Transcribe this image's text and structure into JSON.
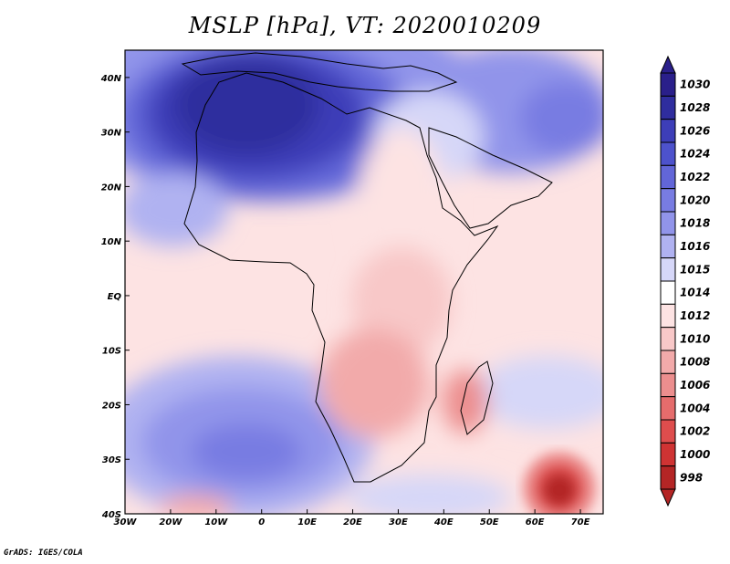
{
  "title": "MSLP [hPa], VT: 2020010209",
  "credit": "GrADS: IGES/COLA",
  "map": {
    "lon_range": [
      -30,
      75
    ],
    "lat_range": [
      -40,
      45
    ],
    "x_ticks": [
      {
        "lon": -30,
        "label": "30W"
      },
      {
        "lon": -20,
        "label": "20W"
      },
      {
        "lon": -10,
        "label": "10W"
      },
      {
        "lon": 0,
        "label": "0"
      },
      {
        "lon": 10,
        "label": "10E"
      },
      {
        "lon": 20,
        "label": "20E"
      },
      {
        "lon": 30,
        "label": "30E"
      },
      {
        "lon": 40,
        "label": "40E"
      },
      {
        "lon": 50,
        "label": "50E"
      },
      {
        "lon": 60,
        "label": "60E"
      },
      {
        "lon": 70,
        "label": "70E"
      }
    ],
    "y_ticks": [
      {
        "lat": -40,
        "label": "40S"
      },
      {
        "lat": -30,
        "label": "30S"
      },
      {
        "lat": -20,
        "label": "20S"
      },
      {
        "lat": -10,
        "label": "10S"
      },
      {
        "lat": 0,
        "label": "EQ"
      },
      {
        "lat": 10,
        "label": "10N"
      },
      {
        "lat": 20,
        "label": "20N"
      },
      {
        "lat": 30,
        "label": "30N"
      },
      {
        "lat": 40,
        "label": "40N"
      }
    ]
  },
  "colorbar": {
    "levels": [
      {
        "label": "1030",
        "color": "#2a1f8a"
      },
      {
        "label": "1028",
        "color": "#2f2d9e"
      },
      {
        "label": "1026",
        "color": "#3d3eb8"
      },
      {
        "label": "1024",
        "color": "#4d52cc"
      },
      {
        "label": "1022",
        "color": "#6266d8"
      },
      {
        "label": "1020",
        "color": "#787ce2"
      },
      {
        "label": "1018",
        "color": "#9194ea"
      },
      {
        "label": "1016",
        "color": "#b0b2f1"
      },
      {
        "label": "1015",
        "color": "#d6d7f8"
      },
      {
        "label": "1014",
        "color": "#ffffff"
      },
      {
        "label": "1012",
        "color": "#fde3e3"
      },
      {
        "label": "1010",
        "color": "#f8c8c8"
      },
      {
        "label": "1008",
        "color": "#f2aaaa"
      },
      {
        "label": "1006",
        "color": "#ec8e8e"
      },
      {
        "label": "1004",
        "color": "#e56c6c"
      },
      {
        "label": "1002",
        "color": "#de4d4d"
      },
      {
        "label": "1000",
        "color": "#cf3333"
      },
      {
        "label": "998",
        "color": "#b42525"
      }
    ],
    "bottom_color": "#b42525"
  },
  "pressure_regions": [
    {
      "name": "background",
      "value": 1012
    },
    {
      "name": "north-africa-high",
      "value": 1028
    },
    {
      "name": "south-atlantic-high",
      "value": 1020
    },
    {
      "name": "southwest-indian-low",
      "value": 998
    }
  ]
}
